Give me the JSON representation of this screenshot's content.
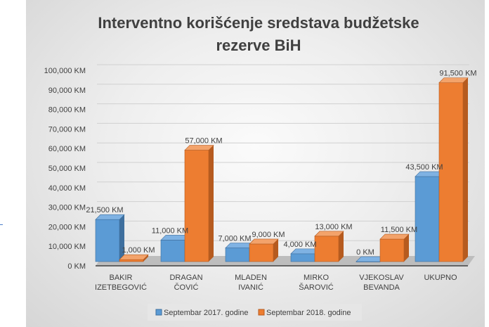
{
  "chart_data": {
    "type": "bar",
    "title": "Interventno korišćenje sredstava budžetske rezerve BiH",
    "title_lines": [
      "Interventno korišćenje sredstava budžetske",
      "rezerve BiH"
    ],
    "categories": [
      [
        "BAKIR",
        "IZETBEGOVIĆ"
      ],
      [
        "DRAGAN",
        "ČOVIĆ"
      ],
      [
        "MLADEN",
        "IVANIĆ"
      ],
      [
        "MIRKO",
        "ŠAROVIĆ"
      ],
      [
        "VJEKOSLAV",
        "BEVANDA"
      ],
      [
        "UKUPNO"
      ]
    ],
    "series": [
      {
        "name": "Septembar 2017. godine",
        "color": "#5b9bd5",
        "values": [
          21500,
          11000,
          7000,
          4000,
          0,
          43500
        ],
        "labels": [
          "21,500 KM",
          "11,000 KM",
          "7,000 KM",
          "4,000 KM",
          "0 KM",
          "43,500 KM"
        ]
      },
      {
        "name": "Septembar 2018. godine",
        "color": "#ed7d31",
        "values": [
          1000,
          57000,
          9000,
          13000,
          11500,
          91500
        ],
        "labels": [
          "1,000 KM",
          "57,000 KM",
          "9,000 KM",
          "13,000 KM",
          "11,500 KM",
          "91,500 KM"
        ]
      }
    ],
    "ylim": [
      0,
      100000
    ],
    "yticks": [
      "0 KM",
      "10,000 KM",
      "20,000 KM",
      "30,000 KM",
      "40,000 KM",
      "50,000 KM",
      "60,000 KM",
      "70,000 KM",
      "80,000 KM",
      "90,000 KM",
      "100,000 KM"
    ],
    "grid": true,
    "legend": "bottom",
    "xlabel": "",
    "ylabel": ""
  }
}
